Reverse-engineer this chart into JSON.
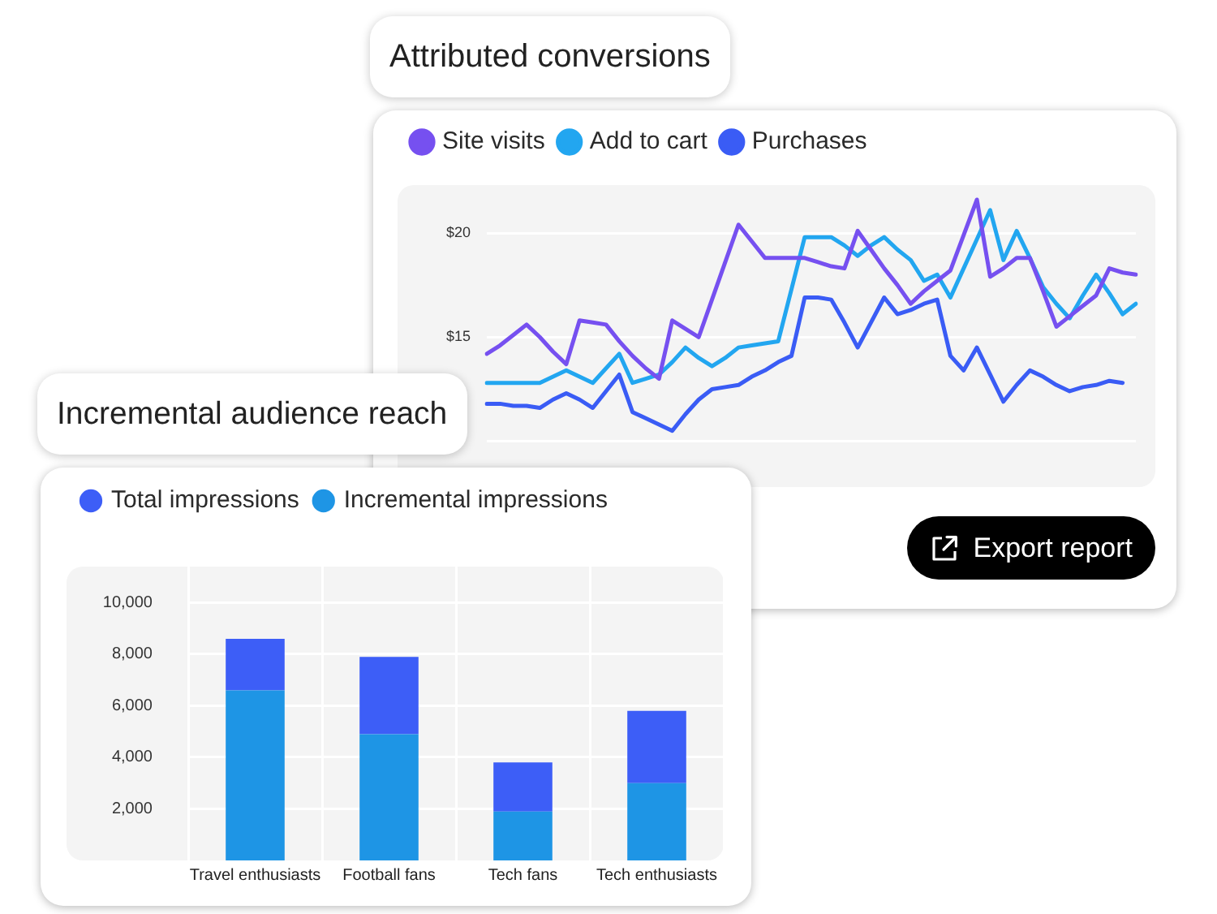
{
  "chart_data": [
    {
      "type": "line",
      "title": "Attributed conversions",
      "categories": [
        null,
        null,
        null,
        null,
        null,
        null,
        null,
        null,
        null,
        null,
        null,
        null,
        null,
        null,
        null,
        null,
        null,
        null,
        null,
        null,
        null,
        null,
        null,
        null,
        null,
        null,
        null,
        null,
        null,
        null,
        null,
        null,
        null,
        null,
        null,
        null,
        null,
        null,
        null,
        null,
        null,
        null,
        null,
        null,
        null,
        null,
        null,
        null,
        null,
        null
      ],
      "series": [
        {
          "name": "Site visits",
          "color": "#7650f0",
          "values": [
            14.2,
            14.6,
            15.1,
            15.6,
            15.0,
            14.3,
            13.7,
            15.8,
            15.7,
            15.6,
            14.8,
            14.1,
            13.5,
            13.0,
            15.8,
            15.4,
            15.0,
            16.8,
            18.6,
            20.4,
            19.6,
            18.8,
            18.8,
            18.8,
            18.8,
            18.6,
            18.4,
            18.3,
            20.1,
            19.2,
            18.3,
            17.5,
            16.6,
            17.2,
            17.7,
            18.2,
            19.9,
            21.6,
            17.9,
            18.3,
            18.8,
            18.8,
            17.2,
            15.5,
            16.0,
            16.5,
            17.0,
            18.3,
            18.1,
            18.0
          ]
        },
        {
          "name": "Add to cart",
          "color": "#22a6f0",
          "values": [
            12.8,
            12.8,
            12.8,
            12.8,
            12.8,
            13.1,
            13.4,
            13.1,
            12.8,
            13.5,
            14.2,
            12.8,
            13.0,
            13.2,
            13.8,
            14.5,
            14.0,
            13.6,
            14.0,
            14.5,
            14.6,
            14.7,
            14.8,
            17.3,
            19.8,
            19.8,
            19.8,
            19.4,
            18.9,
            19.4,
            19.8,
            19.2,
            18.7,
            17.7,
            18.0,
            16.9,
            18.3,
            19.7,
            21.1,
            18.7,
            20.1,
            18.8,
            17.4,
            16.6,
            15.9,
            17.0,
            18.0,
            17.1,
            16.1,
            16.6
          ]
        },
        {
          "name": "Purchases",
          "color": "#3a5cf5",
          "values": [
            11.8,
            11.8,
            11.7,
            11.7,
            11.6,
            12.0,
            12.3,
            12.0,
            11.6,
            12.4,
            13.2,
            11.4,
            11.1,
            10.8,
            10.5,
            11.3,
            12.0,
            12.5,
            12.6,
            12.7,
            13.1,
            13.4,
            13.8,
            14.1,
            16.9,
            16.9,
            16.8,
            15.7,
            14.5,
            15.7,
            16.9,
            16.1,
            16.3,
            16.6,
            16.8,
            14.1,
            13.4,
            14.5,
            13.2,
            11.9,
            12.7,
            13.4,
            13.1,
            12.7,
            12.4,
            12.6,
            12.7,
            12.9,
            12.8,
            null
          ]
        }
      ],
      "ylim": [
        7.8,
        22.3
      ],
      "yticks": [
        {
          "value": 10,
          "label": null
        },
        {
          "value": 15,
          "label": "$15"
        },
        {
          "value": 20,
          "label": "$20"
        }
      ],
      "tick_labels": "y",
      "grid": "y",
      "legend": "top left",
      "annotations": [
        "Export report"
      ]
    },
    {
      "type": "bar",
      "title": "Incremental audience reach",
      "categories": [
        "Travel enthusiasts",
        "Football fans",
        "Tech fans",
        "Tech enthusiasts"
      ],
      "stacked": true,
      "series": [
        {
          "name": "Incremental impressions",
          "color": "#1e95e5",
          "values": [
            6600,
            4900,
            1900,
            3000
          ]
        },
        {
          "name": "Total impressions",
          "color": "#3d5ef7",
          "values": [
            2000,
            3000,
            1900,
            2800
          ]
        }
      ],
      "ylim": [
        0,
        11400
      ],
      "yticks": [
        {
          "value": 2000,
          "label": "2,000"
        },
        {
          "value": 4000,
          "label": "4,000"
        },
        {
          "value": 6000,
          "label": "6,000"
        },
        {
          "value": 8000,
          "label": "8,000"
        },
        {
          "value": 10000,
          "label": "10,000"
        }
      ],
      "grid": true,
      "legend": "top left"
    }
  ]
}
